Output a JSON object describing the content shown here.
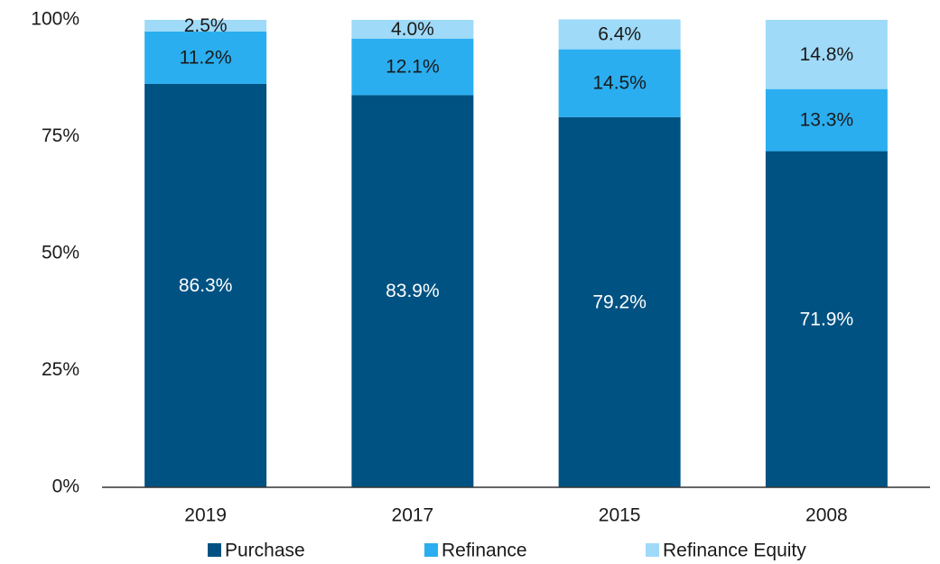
{
  "chart_data": {
    "type": "stacked_bar",
    "categories": [
      "2019",
      "2017",
      "2015",
      "2008"
    ],
    "series": [
      {
        "name": "Purchase",
        "color": "#005282",
        "values": [
          86.3,
          83.9,
          79.2,
          71.9
        ],
        "value_labels": [
          "86.3%",
          "83.9%",
          "79.2%",
          "71.9%"
        ]
      },
      {
        "name": "Refinance",
        "color": "#2aaef0",
        "values": [
          11.2,
          12.1,
          14.5,
          13.3
        ],
        "value_labels": [
          "11.2%",
          "12.1%",
          "14.5%",
          "13.3%"
        ]
      },
      {
        "name": "Refinance Equity",
        "color": "#9fdaf8",
        "values": [
          2.5,
          4.0,
          6.4,
          14.8
        ],
        "value_labels": [
          "2.5%",
          "4.0%",
          "6.4%",
          "14.8%"
        ]
      }
    ],
    "ylim": [
      0,
      100
    ],
    "yticks": [
      {
        "value": 0,
        "label": "0%"
      },
      {
        "value": 25,
        "label": "25%"
      },
      {
        "value": 50,
        "label": "50%"
      },
      {
        "value": 75,
        "label": "75%"
      },
      {
        "value": 100,
        "label": "100%"
      }
    ],
    "grid": false,
    "legend": "bottom"
  }
}
